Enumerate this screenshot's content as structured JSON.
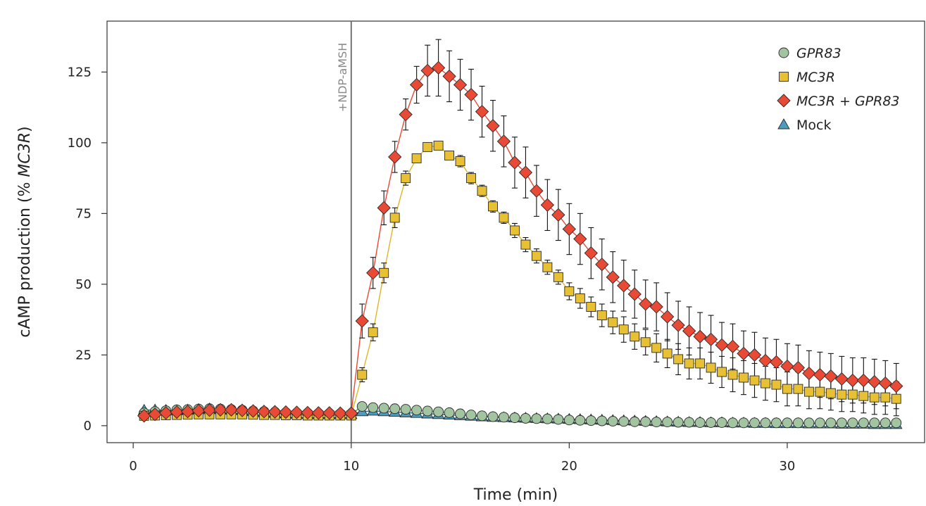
{
  "chart_data": {
    "type": "scatter",
    "title": "",
    "xlabel": "Time (min)",
    "ylabel_prefix": "cAMP production (% ",
    "ylabel_italic": "MC3R",
    "ylabel_suffix": ")",
    "xlim": [
      -1.2,
      36.3
    ],
    "ylim": [
      -6,
      143
    ],
    "xticks": [
      0,
      10,
      20,
      30
    ],
    "yticks": [
      0,
      25,
      50,
      75,
      100,
      125
    ],
    "grid": false,
    "legend_position": "top-right",
    "annotation": {
      "x": 10,
      "text": "+NDP-aMSH"
    },
    "series": [
      {
        "name": "Mock",
        "legend_parts": [
          {
            "text": "Mock",
            "italic": false
          }
        ],
        "marker": "triangle",
        "color": "#4a9cc2",
        "line_color": "#2b6a86",
        "x": [
          0.5,
          1.0,
          1.5,
          2.0,
          2.5,
          3.0,
          3.5,
          4.0,
          4.5,
          5.0,
          5.5,
          6.0,
          6.5,
          7.0,
          7.5,
          8.0,
          8.5,
          9.0,
          9.5,
          10.0,
          10.5,
          11.0,
          11.5,
          12.0,
          12.5,
          13.0,
          13.5,
          14.0,
          14.5,
          15.0,
          15.5,
          16.0,
          16.5,
          17.0,
          17.5,
          18.0,
          18.5,
          19.0,
          19.5,
          20.0,
          20.5,
          21.0,
          21.5,
          22.0,
          22.5,
          23.0,
          23.5,
          24.0,
          24.5,
          25.0,
          25.5,
          26.0,
          26.5,
          27.0,
          27.5,
          28.0,
          28.5,
          29.0,
          29.5,
          30.0,
          30.5,
          31.0,
          31.5,
          32.0,
          32.5,
          33.0,
          33.5,
          34.0,
          34.5,
          35.0
        ],
        "y": [
          5.5,
          5.6,
          5.5,
          5.4,
          5.6,
          5.8,
          6.0,
          5.8,
          5.6,
          5.4,
          5.0,
          4.6,
          4.4,
          4.2,
          4.1,
          4.0,
          4.0,
          4.0,
          4.0,
          4.0,
          5.0,
          5.2,
          5.0,
          4.8,
          4.6,
          4.4,
          4.2,
          4.0,
          3.8,
          3.6,
          3.4,
          3.2,
          3.0,
          2.9,
          2.8,
          2.7,
          2.6,
          2.5,
          2.4,
          2.3,
          2.2,
          2.1,
          2.0,
          1.9,
          1.8,
          1.7,
          1.6,
          1.5,
          1.4,
          1.3,
          1.2,
          1.2,
          1.1,
          1.1,
          1.0,
          1.0,
          0.9,
          0.9,
          0.8,
          0.8,
          0.8,
          0.7,
          0.7,
          0.7,
          0.6,
          0.6,
          0.6,
          0.5,
          0.5,
          0.5
        ],
        "err": [
          0.6,
          0.6,
          0.6,
          0.6,
          0.6,
          0.6,
          0.6,
          0.6,
          0.6,
          0.6,
          0.5,
          0.5,
          0.5,
          0.5,
          0.5,
          0.5,
          0.5,
          0.5,
          0.5,
          0.5,
          0.5,
          0.5,
          0.5,
          0.5,
          0.5,
          0.5,
          0.5,
          0.5,
          0.5,
          0.5,
          0.5,
          0.5,
          0.5,
          0.5,
          0.5,
          0.5,
          0.5,
          0.5,
          0.5,
          0.5,
          0.5,
          0.5,
          0.5,
          0.5,
          0.5,
          0.5,
          0.5,
          0.5,
          0.5,
          0.5,
          0.5,
          0.5,
          0.5,
          0.5,
          0.5,
          0.5,
          0.5,
          0.5,
          0.5,
          0.5,
          0.5,
          0.5,
          0.5,
          0.5,
          0.5,
          0.5,
          0.5,
          0.5,
          0.5,
          0.5
        ]
      },
      {
        "name": "GPR83",
        "legend_parts": [
          {
            "text": "GPR83",
            "italic": true
          }
        ],
        "marker": "circle",
        "color": "#a3c4a0",
        "line_color": "#6f946c",
        "x": [
          0.5,
          1.0,
          1.5,
          2.0,
          2.5,
          3.0,
          3.5,
          4.0,
          4.5,
          5.0,
          5.5,
          6.0,
          6.5,
          7.0,
          7.5,
          8.0,
          8.5,
          9.0,
          9.5,
          10.0,
          10.5,
          11.0,
          11.5,
          12.0,
          12.5,
          13.0,
          13.5,
          14.0,
          14.5,
          15.0,
          15.5,
          16.0,
          16.5,
          17.0,
          17.5,
          18.0,
          18.5,
          19.0,
          19.5,
          20.0,
          20.5,
          21.0,
          21.5,
          22.0,
          22.5,
          23.0,
          23.5,
          24.0,
          24.5,
          25.0,
          25.5,
          26.0,
          26.5,
          27.0,
          27.5,
          28.0,
          28.5,
          29.0,
          29.5,
          30.0,
          30.5,
          31.0,
          31.5,
          32.0,
          32.5,
          33.0,
          33.5,
          34.0,
          34.5,
          35.0
        ],
        "y": [
          4.5,
          5.0,
          5.3,
          5.6,
          5.7,
          5.9,
          6.0,
          5.9,
          5.7,
          5.5,
          5.2,
          5.0,
          4.8,
          4.6,
          4.5,
          4.4,
          4.3,
          4.3,
          4.2,
          4.2,
          6.8,
          6.4,
          6.2,
          6.0,
          5.8,
          5.5,
          5.2,
          4.9,
          4.6,
          4.2,
          3.8,
          3.5,
          3.2,
          3.0,
          2.8,
          2.6,
          2.5,
          2.4,
          2.2,
          2.0,
          1.9,
          1.8,
          1.7,
          1.6,
          1.5,
          1.4,
          1.4,
          1.3,
          1.3,
          1.2,
          1.2,
          1.1,
          1.1,
          1.1,
          1.0,
          1.0,
          1.0,
          1.0,
          1.0,
          1.0,
          1.0,
          1.0,
          1.0,
          1.0,
          1.0,
          1.0,
          1.0,
          1.0,
          1.0,
          1.0
        ],
        "err": [
          0.5,
          0.5,
          0.5,
          0.5,
          0.5,
          0.5,
          0.5,
          0.5,
          0.5,
          0.5,
          0.5,
          0.5,
          0.5,
          0.5,
          0.5,
          0.5,
          0.5,
          0.5,
          0.5,
          0.5,
          0.8,
          0.8,
          0.8,
          0.8,
          0.8,
          0.8,
          0.8,
          0.8,
          0.8,
          0.7,
          0.7,
          0.7,
          0.7,
          0.7,
          0.7,
          0.7,
          0.7,
          0.7,
          0.7,
          0.7,
          0.7,
          0.7,
          0.7,
          0.7,
          0.7,
          0.7,
          0.7,
          0.7,
          0.7,
          0.7,
          0.7,
          0.7,
          0.7,
          0.7,
          0.7,
          0.7,
          0.7,
          0.7,
          0.7,
          0.7,
          0.7,
          0.7,
          0.7,
          0.7,
          0.7,
          0.7,
          0.7,
          0.7,
          0.7,
          0.7
        ]
      },
      {
        "name": "MC3R",
        "legend_parts": [
          {
            "text": "MC3R",
            "italic": true
          }
        ],
        "marker": "square",
        "color": "#e8c033",
        "line_color": "#e0b52a",
        "x": [
          0.5,
          1.0,
          1.5,
          2.0,
          2.5,
          3.0,
          3.5,
          4.0,
          4.5,
          5.0,
          5.5,
          6.0,
          6.5,
          7.0,
          7.5,
          8.0,
          8.5,
          9.0,
          9.5,
          10.0,
          10.5,
          11.0,
          11.5,
          12.0,
          12.5,
          13.0,
          13.5,
          14.0,
          14.5,
          15.0,
          15.5,
          16.0,
          16.5,
          17.0,
          17.5,
          18.0,
          18.5,
          19.0,
          19.5,
          20.0,
          20.5,
          21.0,
          21.5,
          22.0,
          22.5,
          23.0,
          23.5,
          24.0,
          24.5,
          25.0,
          25.5,
          26.0,
          26.5,
          27.0,
          27.5,
          28.0,
          28.5,
          29.0,
          29.5,
          30.0,
          30.5,
          31.0,
          31.5,
          32.0,
          32.5,
          33.0,
          33.5,
          34.0,
          34.5,
          35.0
        ],
        "y": [
          3.5,
          3.6,
          3.7,
          3.8,
          3.9,
          4.0,
          4.0,
          4.0,
          4.0,
          4.0,
          3.9,
          3.8,
          3.8,
          3.7,
          3.7,
          3.6,
          3.6,
          3.6,
          3.6,
          3.6,
          18.0,
          33.0,
          54.0,
          73.5,
          87.5,
          94.5,
          98.5,
          99.0,
          95.5,
          93.5,
          87.5,
          83.0,
          77.5,
          73.5,
          69.0,
          64.0,
          60.0,
          56.0,
          52.5,
          47.5,
          45.0,
          42.0,
          39.0,
          36.5,
          34.0,
          31.5,
          29.5,
          27.5,
          25.5,
          23.5,
          22.0,
          22.0,
          20.5,
          19.0,
          18.0,
          17.0,
          16.0,
          15.0,
          14.5,
          13.0,
          13.0,
          12.0,
          12.0,
          11.5,
          11.0,
          11.0,
          10.5,
          10.0,
          10.0,
          9.5
        ],
        "err": [
          0.5,
          0.5,
          0.5,
          0.5,
          0.5,
          0.5,
          0.5,
          0.5,
          0.5,
          0.5,
          0.5,
          0.5,
          0.5,
          0.5,
          0.5,
          0.5,
          0.5,
          0.5,
          0.5,
          0.5,
          2.5,
          3.0,
          3.5,
          3.5,
          2.5,
          1.5,
          1.0,
          1.0,
          1.0,
          2.0,
          2.0,
          2.0,
          2.0,
          2.0,
          2.5,
          2.5,
          2.5,
          2.5,
          2.5,
          3.0,
          3.5,
          3.5,
          4.0,
          4.0,
          4.5,
          4.5,
          4.5,
          5.0,
          5.0,
          5.5,
          5.5,
          5.5,
          5.5,
          5.5,
          6.0,
          6.0,
          6.0,
          6.0,
          6.0,
          6.0,
          6.0,
          6.0,
          6.0,
          6.0,
          6.0,
          6.0,
          6.0,
          6.0,
          6.0,
          6.0
        ]
      },
      {
        "name": "MC3R + GPR83",
        "legend_parts": [
          {
            "text": "MC3R",
            "italic": true
          },
          {
            "text": " + ",
            "italic": false
          },
          {
            "text": "GPR83",
            "italic": true
          }
        ],
        "marker": "diamond",
        "color": "#e84a36",
        "line_color": "#e84a36",
        "x": [
          0.5,
          1.0,
          1.5,
          2.0,
          2.5,
          3.0,
          3.5,
          4.0,
          4.5,
          5.0,
          5.5,
          6.0,
          6.5,
          7.0,
          7.5,
          8.0,
          8.5,
          9.0,
          9.5,
          10.0,
          10.5,
          11.0,
          11.5,
          12.0,
          12.5,
          13.0,
          13.5,
          14.0,
          14.5,
          15.0,
          15.5,
          16.0,
          16.5,
          17.0,
          17.5,
          18.0,
          18.5,
          19.0,
          19.5,
          20.0,
          20.5,
          21.0,
          21.5,
          22.0,
          22.5,
          23.0,
          23.5,
          24.0,
          24.5,
          25.0,
          25.5,
          26.0,
          26.5,
          27.0,
          27.5,
          28.0,
          28.5,
          29.0,
          29.5,
          30.0,
          30.5,
          31.0,
          31.5,
          32.0,
          32.5,
          33.0,
          33.5,
          34.0,
          34.5,
          35.0
        ],
        "y": [
          3.5,
          4.0,
          4.5,
          4.8,
          5.0,
          5.3,
          5.5,
          5.6,
          5.6,
          5.4,
          5.2,
          5.0,
          4.9,
          4.8,
          4.7,
          4.6,
          4.5,
          4.5,
          4.4,
          4.4,
          37.0,
          54.0,
          77.0,
          95.0,
          110.0,
          120.5,
          125.5,
          126.5,
          123.5,
          120.5,
          117.0,
          111.0,
          106.0,
          100.5,
          93.0,
          89.5,
          83.0,
          78.0,
          74.5,
          69.5,
          66.0,
          61.0,
          57.0,
          52.5,
          49.5,
          46.5,
          43.0,
          42.0,
          38.5,
          35.5,
          33.5,
          31.5,
          30.5,
          28.5,
          28.0,
          25.5,
          25.0,
          23.0,
          22.5,
          21.0,
          20.5,
          18.5,
          18.0,
          17.5,
          16.5,
          16.0,
          16.0,
          15.5,
          15.0,
          14.0
        ],
        "err": [
          0.8,
          0.8,
          0.8,
          0.8,
          0.8,
          0.8,
          0.8,
          0.8,
          0.8,
          0.8,
          0.8,
          0.8,
          0.8,
          0.8,
          0.8,
          0.8,
          0.8,
          0.8,
          0.8,
          0.8,
          6.0,
          5.5,
          6.0,
          5.5,
          5.5,
          6.5,
          9.0,
          10.0,
          9.0,
          9.0,
          9.0,
          9.0,
          9.0,
          9.0,
          9.0,
          9.0,
          9.0,
          9.0,
          9.0,
          9.0,
          9.0,
          9.0,
          9.0,
          9.0,
          9.0,
          8.5,
          8.5,
          8.5,
          8.5,
          8.5,
          8.5,
          8.5,
          8.5,
          8.0,
          8.0,
          8.0,
          8.0,
          8.0,
          8.0,
          8.0,
          8.0,
          8.0,
          8.0,
          8.0,
          8.0,
          8.0,
          8.0,
          8.0,
          8.0,
          8.0
        ]
      }
    ],
    "legend_order": [
      "GPR83",
      "MC3R",
      "MC3R + GPR83",
      "Mock"
    ]
  }
}
